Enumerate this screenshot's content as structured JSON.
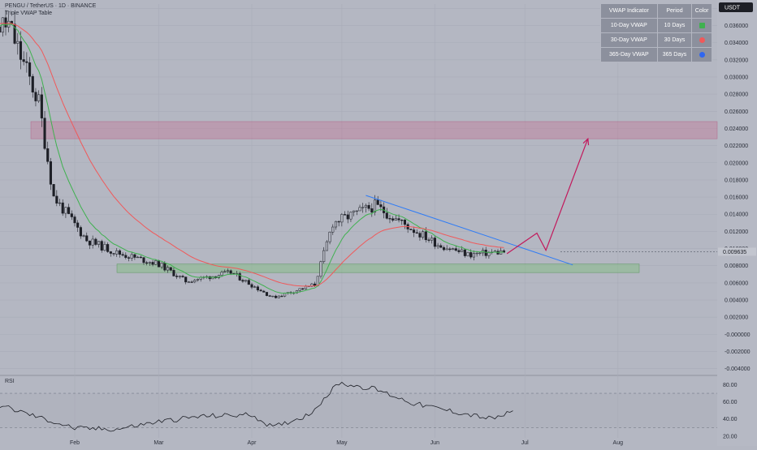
{
  "header": {
    "title": "PENGU / TetherUS · 1D · BINANCE",
    "subtitle": "Triple VWAP Table"
  },
  "price_axis": {
    "currency_badge": "USDT",
    "current_price_label": "0.009635"
  },
  "vwap_table": {
    "headers": [
      "VWAP Indicator",
      "Period",
      "Color"
    ],
    "rows": [
      {
        "name": "10-Day VWAP",
        "period": "10 Days",
        "color": "#3fb14f",
        "shape": "square"
      },
      {
        "name": "30-Day VWAP",
        "period": "30 Days",
        "color": "#f0595a",
        "shape": "circle"
      },
      {
        "name": "365-Day VWAP",
        "period": "365 Days",
        "color": "#2f66f0",
        "shape": "circle"
      }
    ]
  },
  "colors": {
    "background": "#b4b7c2",
    "grid": "#a9acb8",
    "candle": "#1d1f26",
    "vwap10": "#3fb14f",
    "vwap30": "#f0595a",
    "trendline": "#2f7cf6",
    "projection": "#c2185b",
    "resistance_zone": "#c56a8e",
    "support_zone": "#7fbf7f",
    "rsi_line": "#1d1f26"
  },
  "chart_data": [
    {
      "type": "candlestick",
      "title": "PENGU / TetherUS · 1D · BINANCE",
      "x_tick_labels": [
        "Feb",
        "Mar",
        "Apr",
        "May",
        "Jun",
        "Jul",
        "Aug"
      ],
      "y_tick_labels": [
        "0.038000",
        "0.036000",
        "0.034000",
        "0.032000",
        "0.030000",
        "0.028000",
        "0.026000",
        "0.024000",
        "0.022000",
        "0.020000",
        "0.018000",
        "0.016000",
        "0.014000",
        "0.012000",
        "0.010000",
        "0.008000",
        "0.006000",
        "0.004000",
        "0.002000",
        "-0.000000",
        "-0.002000",
        "-0.004000"
      ],
      "ylim": [
        -0.0045,
        0.0385
      ],
      "grid": true,
      "current_price": 0.009635,
      "close_approx": [
        {
          "date": "Jan 10",
          "value": 0.036
        },
        {
          "date": "Jan 20",
          "value": 0.027
        },
        {
          "date": "Jan 25",
          "value": 0.016
        },
        {
          "date": "Feb 5",
          "value": 0.011
        },
        {
          "date": "Feb 15",
          "value": 0.0095
        },
        {
          "date": "Mar 1",
          "value": 0.0082
        },
        {
          "date": "Mar 10",
          "value": 0.0062
        },
        {
          "date": "Mar 25",
          "value": 0.0072
        },
        {
          "date": "Apr 8",
          "value": 0.0043
        },
        {
          "date": "Apr 22",
          "value": 0.0058
        },
        {
          "date": "Apr 28",
          "value": 0.013
        },
        {
          "date": "May 12",
          "value": 0.015
        },
        {
          "date": "May 22",
          "value": 0.0128
        },
        {
          "date": "Jun 2",
          "value": 0.0105
        },
        {
          "date": "Jun 12",
          "value": 0.0093
        },
        {
          "date": "Jun 24",
          "value": 0.009635
        }
      ],
      "series": [
        {
          "name": "10-Day VWAP",
          "color": "#3fb14f"
        },
        {
          "name": "30-Day VWAP",
          "color": "#f0595a"
        }
      ],
      "annotations": [
        {
          "kind": "resistance_zone",
          "y_range": [
            0.0228,
            0.0248
          ]
        },
        {
          "kind": "support_zone",
          "y_range": [
            0.0072,
            0.0082
          ]
        },
        {
          "kind": "descending_trendline",
          "from": {
            "date": "May 9",
            "value": 0.0162
          },
          "to": {
            "date": "Jun 28",
            "value": 0.009
          }
        },
        {
          "kind": "projected_path",
          "points": [
            {
              "date": "Jun 25",
              "value": 0.0094
            },
            {
              "date": "Jul 5",
              "value": 0.0118
            },
            {
              "date": "Jul 8",
              "value": 0.0098
            },
            {
              "date": "Jul 22",
              "value": 0.0228
            }
          ]
        }
      ]
    },
    {
      "type": "line",
      "title": "RSI",
      "y_tick_labels": [
        "80.00",
        "60.00",
        "40.00",
        "20.00"
      ],
      "ylim": [
        18,
        88
      ],
      "bands": [
        70,
        30
      ],
      "values_approx": [
        {
          "date": "Jan 5",
          "value": 58
        },
        {
          "date": "Jan 20",
          "value": 42
        },
        {
          "date": "Feb 1",
          "value": 29
        },
        {
          "date": "Feb 15",
          "value": 28
        },
        {
          "date": "Mar 1",
          "value": 37
        },
        {
          "date": "Mar 15",
          "value": 43
        },
        {
          "date": "Apr 1",
          "value": 45
        },
        {
          "date": "Apr 8",
          "value": 30
        },
        {
          "date": "Apr 20",
          "value": 45
        },
        {
          "date": "Apr 30",
          "value": 82
        },
        {
          "date": "May 12",
          "value": 75
        },
        {
          "date": "May 25",
          "value": 58
        },
        {
          "date": "Jun 8",
          "value": 48
        },
        {
          "date": "Jun 20",
          "value": 40
        },
        {
          "date": "Jun 27",
          "value": 48
        }
      ]
    }
  ]
}
